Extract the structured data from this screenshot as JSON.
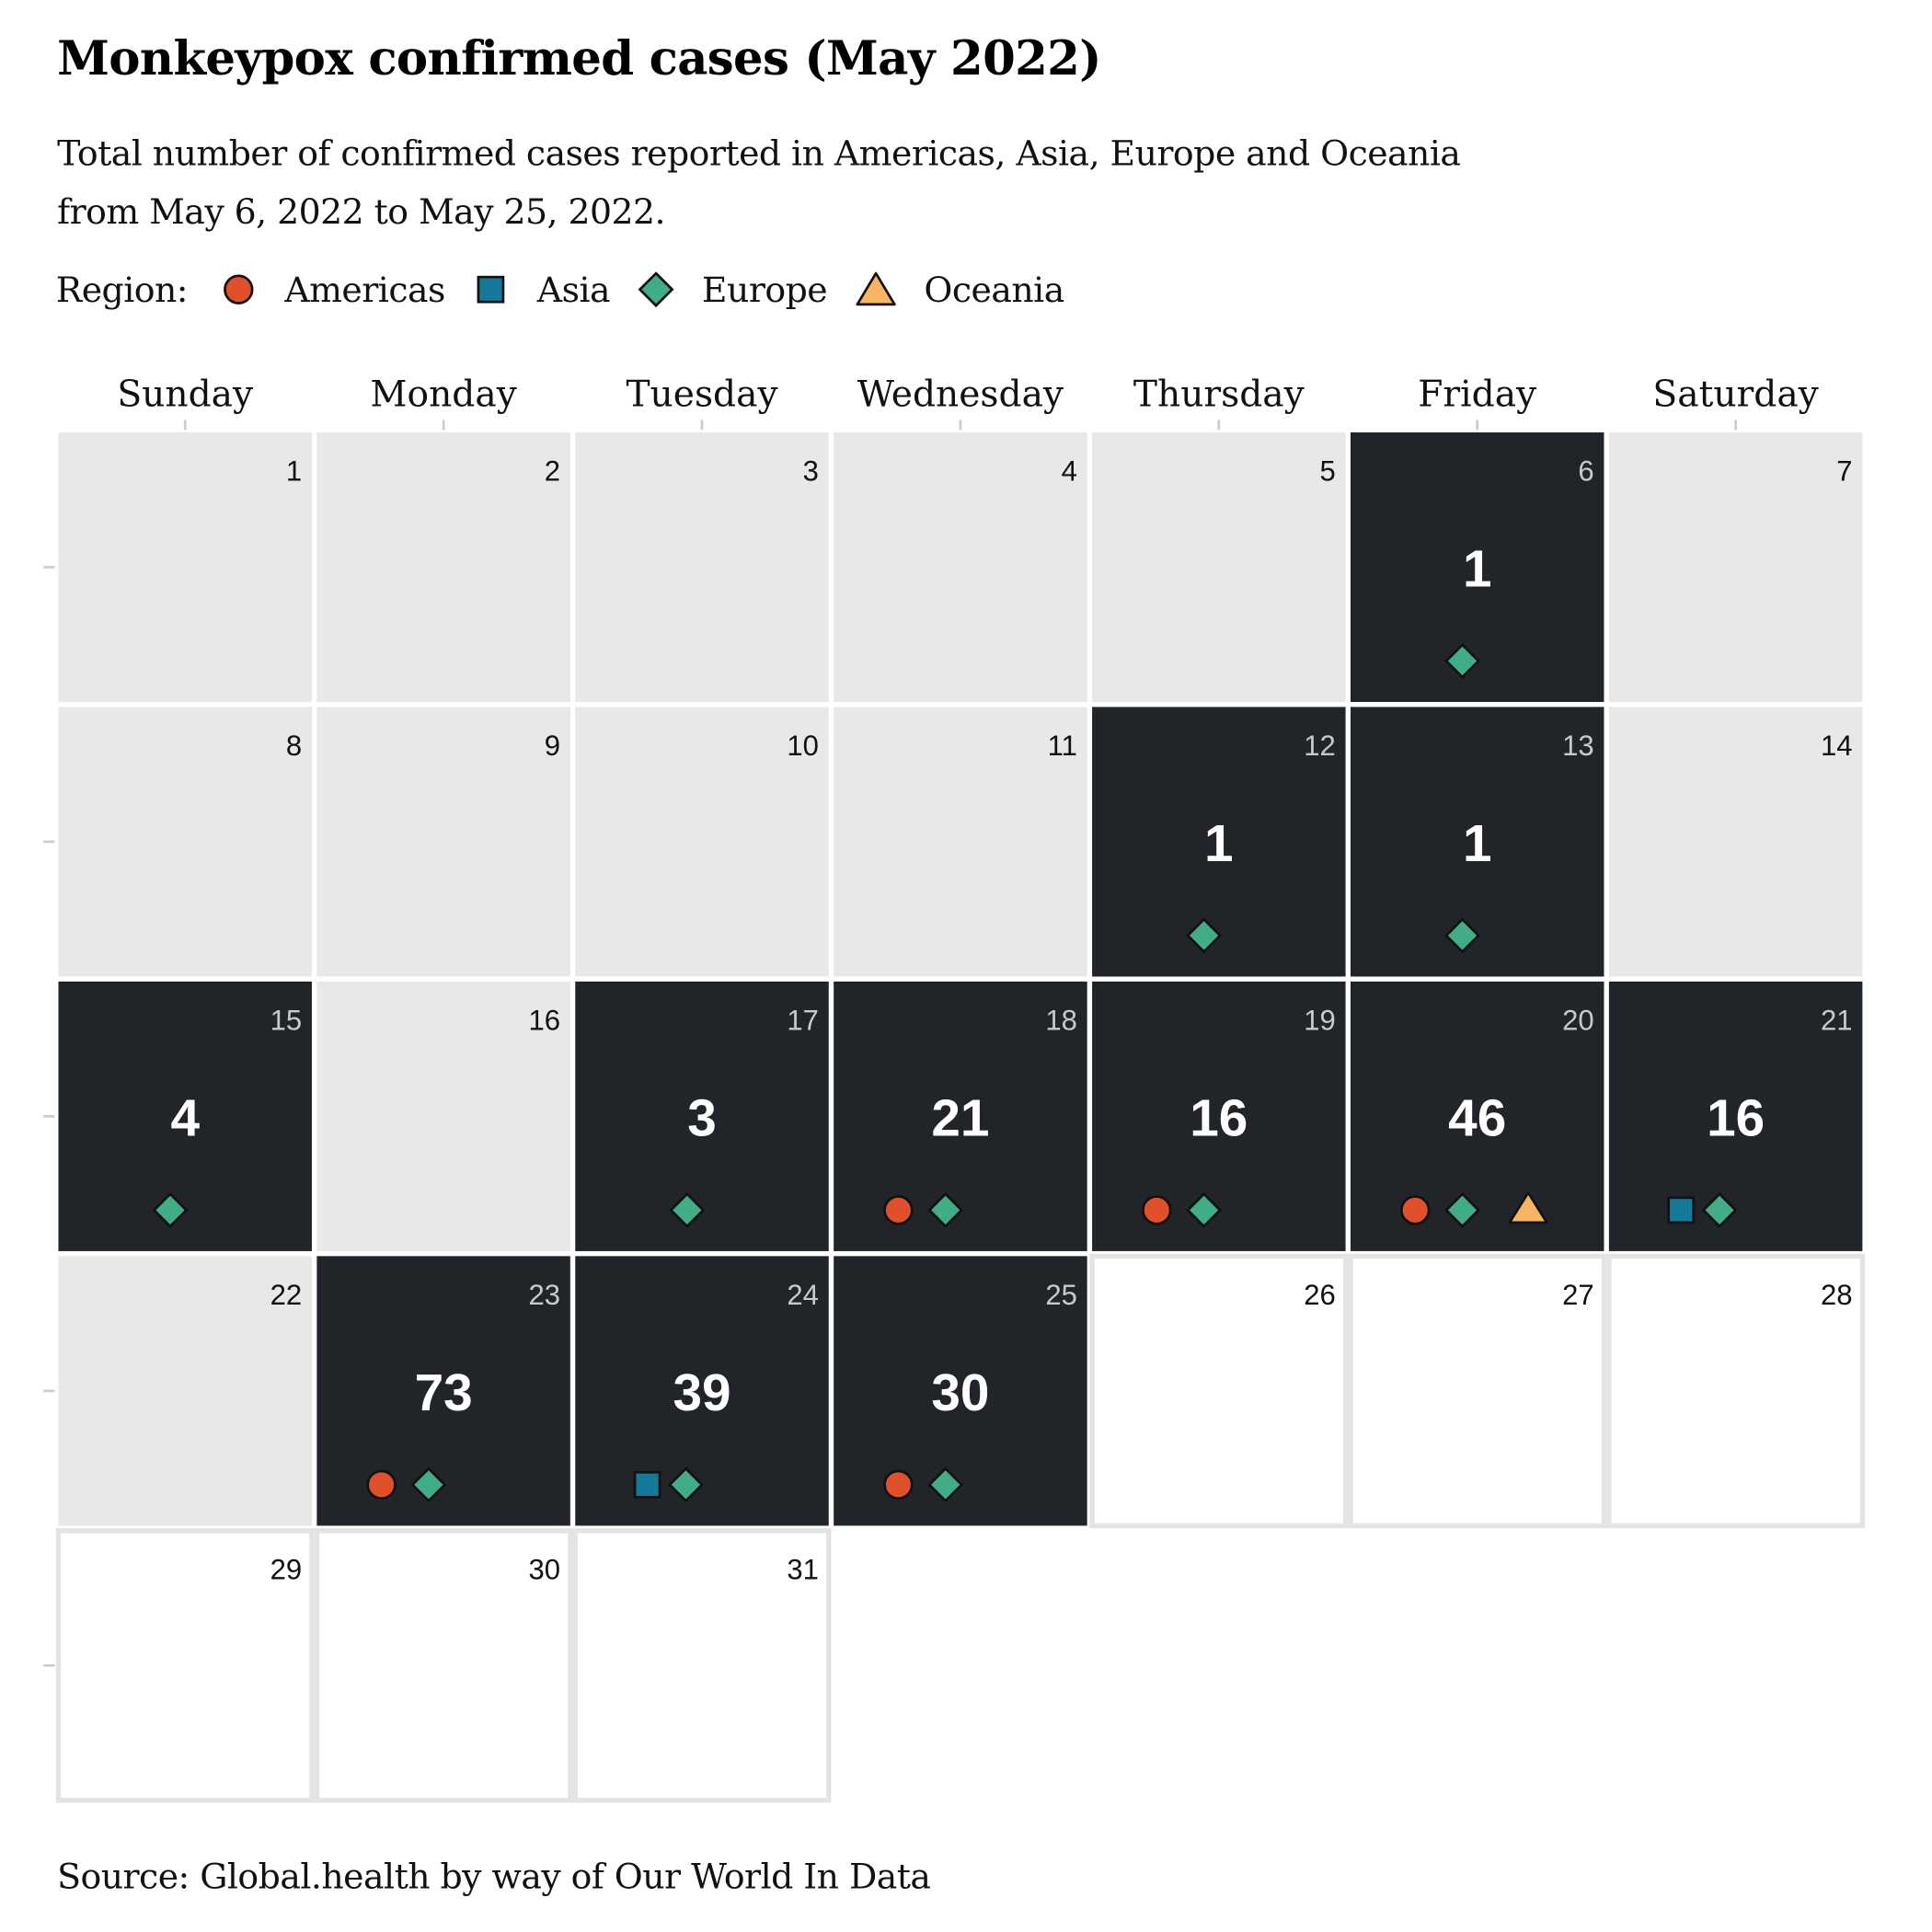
{
  "title": "Monkeypox confirmed cases (May 2022)",
  "subtitle": {
    "line1": "Total number of confirmed cases reported in Americas, Asia, Europe and Oceania",
    "line2": "from May 6, 2022 to May 25, 2022."
  },
  "legend": {
    "label": "Region:",
    "items": [
      {
        "name": "Americas",
        "shape": "circle",
        "color": "#e0502a"
      },
      {
        "name": "Asia",
        "shape": "square",
        "color": "#15799a"
      },
      {
        "name": "Europe",
        "shape": "diamond",
        "color": "#40ad86"
      },
      {
        "name": "Oceania",
        "shape": "triangle",
        "color": "#f7b564"
      }
    ]
  },
  "source": "Source: Global.health by way of Our World In Data",
  "colors": {
    "reported_cell": "#212429",
    "past_cell": "#e8e8e8",
    "future_cell": "#ffffff",
    "future_border": "#e4e4e4"
  },
  "chart_data": {
    "type": "calendar-heatmap",
    "month": "May 2022",
    "weekdays": [
      "Sunday",
      "Monday",
      "Tuesday",
      "Wednesday",
      "Thursday",
      "Friday",
      "Saturday"
    ],
    "first_weekday_index": 0,
    "days_in_month": 31,
    "last_reported_day": 25,
    "cases": [
      {
        "day": 6,
        "total": 1,
        "regions": [
          "Europe"
        ]
      },
      {
        "day": 12,
        "total": 1,
        "regions": [
          "Europe"
        ]
      },
      {
        "day": 13,
        "total": 1,
        "regions": [
          "Europe"
        ]
      },
      {
        "day": 15,
        "total": 4,
        "regions": [
          "Europe"
        ]
      },
      {
        "day": 17,
        "total": 3,
        "regions": [
          "Europe"
        ]
      },
      {
        "day": 18,
        "total": 21,
        "regions": [
          "Americas",
          "Europe"
        ]
      },
      {
        "day": 19,
        "total": 16,
        "regions": [
          "Americas",
          "Europe"
        ]
      },
      {
        "day": 20,
        "total": 46,
        "regions": [
          "Americas",
          "Europe",
          "Oceania"
        ]
      },
      {
        "day": 21,
        "total": 16,
        "regions": [
          "Asia",
          "Europe"
        ]
      },
      {
        "day": 23,
        "total": 73,
        "regions": [
          "Americas",
          "Europe"
        ]
      },
      {
        "day": 24,
        "total": 39,
        "regions": [
          "Asia",
          "Europe"
        ]
      },
      {
        "day": 25,
        "total": 30,
        "regions": [
          "Americas",
          "Europe"
        ]
      }
    ]
  }
}
